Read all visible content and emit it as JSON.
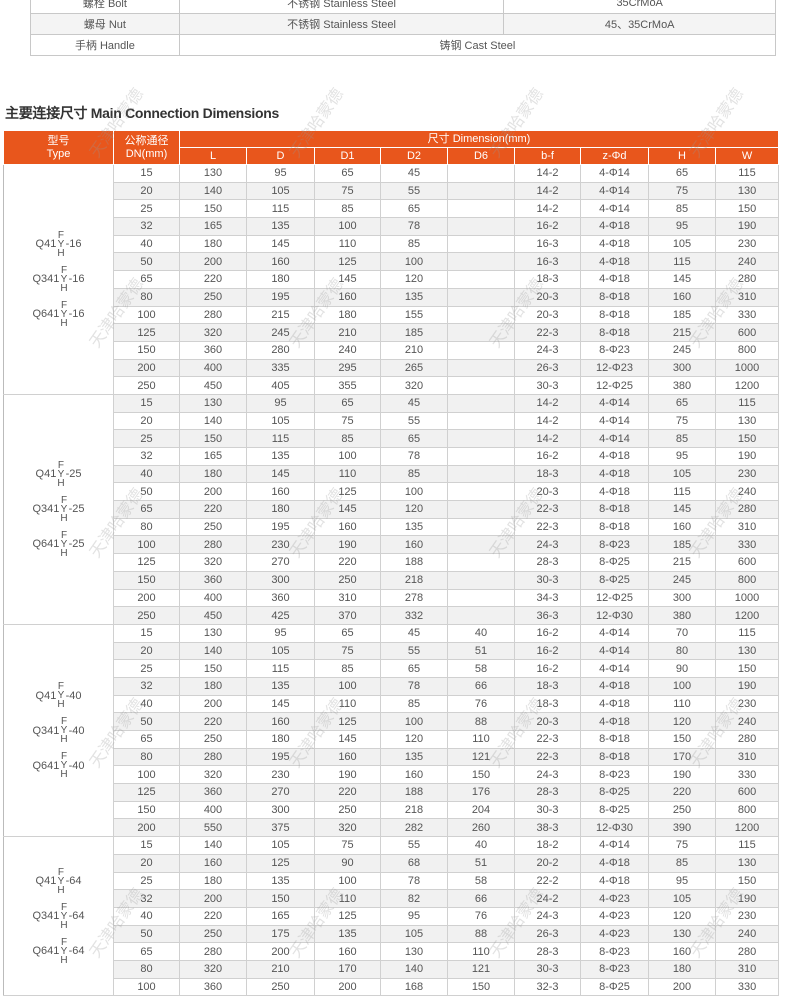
{
  "materials": [
    {
      "part": "螺栓 Bolt",
      "col1": "不锈钢 Stainless Steel",
      "col2": "35CrMoA"
    },
    {
      "part": "螺母 Nut",
      "col1": "不锈钢 Stainless Steel",
      "col2": "45、35CrMoA"
    },
    {
      "part": "手柄 Handle",
      "merged": "铸钢 Cast Steel"
    }
  ],
  "section_title": "主要连接尺寸 Main Connection Dimensions",
  "header": {
    "type": "型号\nType",
    "type_line1": "型号",
    "type_line2": "Type",
    "dn_line1": "公称通径",
    "dn_line2": "DN(mm)",
    "dimension": "尺寸 Dimension(mm)",
    "columns": [
      "L",
      "D",
      "D1",
      "D2",
      "D6",
      "b-f",
      "z-Φd",
      "H",
      "W"
    ]
  },
  "accent_color": "#e8561c",
  "watermark": "天津哈蒙德",
  "groups": [
    {
      "models": [
        "Q41",
        "Q341",
        "Q641"
      ],
      "sup": "F",
      "mid": "Y",
      "sub": "H",
      "pressure": "-16",
      "rows": [
        [
          "15",
          "130",
          "95",
          "65",
          "45",
          "",
          "14-2",
          "4-Φ14",
          "65",
          "115"
        ],
        [
          "20",
          "140",
          "105",
          "75",
          "55",
          "",
          "14-2",
          "4-Φ14",
          "75",
          "130"
        ],
        [
          "25",
          "150",
          "115",
          "85",
          "65",
          "",
          "14-2",
          "4-Φ14",
          "85",
          "150"
        ],
        [
          "32",
          "165",
          "135",
          "100",
          "78",
          "",
          "16-2",
          "4-Φ18",
          "95",
          "190"
        ],
        [
          "40",
          "180",
          "145",
          "110",
          "85",
          "",
          "16-3",
          "4-Φ18",
          "105",
          "230"
        ],
        [
          "50",
          "200",
          "160",
          "125",
          "100",
          "",
          "16-3",
          "4-Φ18",
          "115",
          "240"
        ],
        [
          "65",
          "220",
          "180",
          "145",
          "120",
          "",
          "18-3",
          "4-Φ18",
          "145",
          "280"
        ],
        [
          "80",
          "250",
          "195",
          "160",
          "135",
          "",
          "20-3",
          "8-Φ18",
          "160",
          "310"
        ],
        [
          "100",
          "280",
          "215",
          "180",
          "155",
          "",
          "20-3",
          "8-Φ18",
          "185",
          "330"
        ],
        [
          "125",
          "320",
          "245",
          "210",
          "185",
          "",
          "22-3",
          "8-Φ18",
          "215",
          "600"
        ],
        [
          "150",
          "360",
          "280",
          "240",
          "210",
          "",
          "24-3",
          "8-Φ23",
          "245",
          "800"
        ],
        [
          "200",
          "400",
          "335",
          "295",
          "265",
          "",
          "26-3",
          "12-Φ23",
          "300",
          "1000"
        ],
        [
          "250",
          "450",
          "405",
          "355",
          "320",
          "",
          "30-3",
          "12-Φ25",
          "380",
          "1200"
        ]
      ]
    },
    {
      "models": [
        "Q41",
        "Q341",
        "Q641"
      ],
      "sup": "F",
      "mid": "Y",
      "sub": "H",
      "pressure": "-25",
      "rows": [
        [
          "15",
          "130",
          "95",
          "65",
          "45",
          "",
          "14-2",
          "4-Φ14",
          "65",
          "115"
        ],
        [
          "20",
          "140",
          "105",
          "75",
          "55",
          "",
          "14-2",
          "4-Φ14",
          "75",
          "130"
        ],
        [
          "25",
          "150",
          "115",
          "85",
          "65",
          "",
          "14-2",
          "4-Φ14",
          "85",
          "150"
        ],
        [
          "32",
          "165",
          "135",
          "100",
          "78",
          "",
          "16-2",
          "4-Φ18",
          "95",
          "190"
        ],
        [
          "40",
          "180",
          "145",
          "110",
          "85",
          "",
          "18-3",
          "4-Φ18",
          "105",
          "230"
        ],
        [
          "50",
          "200",
          "160",
          "125",
          "100",
          "",
          "20-3",
          "4-Φ18",
          "115",
          "240"
        ],
        [
          "65",
          "220",
          "180",
          "145",
          "120",
          "",
          "22-3",
          "8-Φ18",
          "145",
          "280"
        ],
        [
          "80",
          "250",
          "195",
          "160",
          "135",
          "",
          "22-3",
          "8-Φ18",
          "160",
          "310"
        ],
        [
          "100",
          "280",
          "230",
          "190",
          "160",
          "",
          "24-3",
          "8-Φ23",
          "185",
          "330"
        ],
        [
          "125",
          "320",
          "270",
          "220",
          "188",
          "",
          "28-3",
          "8-Φ25",
          "215",
          "600"
        ],
        [
          "150",
          "360",
          "300",
          "250",
          "218",
          "",
          "30-3",
          "8-Φ25",
          "245",
          "800"
        ],
        [
          "200",
          "400",
          "360",
          "310",
          "278",
          "",
          "34-3",
          "12-Φ25",
          "300",
          "1000"
        ],
        [
          "250",
          "450",
          "425",
          "370",
          "332",
          "",
          "36-3",
          "12-Φ30",
          "380",
          "1200"
        ]
      ]
    },
    {
      "models": [
        "Q41",
        "Q341",
        "Q641"
      ],
      "sup": "F",
      "mid": "Y",
      "sub": "H",
      "pressure": "-40",
      "rows": [
        [
          "15",
          "130",
          "95",
          "65",
          "45",
          "40",
          "16-2",
          "4-Φ14",
          "70",
          "115"
        ],
        [
          "20",
          "140",
          "105",
          "75",
          "55",
          "51",
          "16-2",
          "4-Φ14",
          "80",
          "130"
        ],
        [
          "25",
          "150",
          "115",
          "85",
          "65",
          "58",
          "16-2",
          "4-Φ14",
          "90",
          "150"
        ],
        [
          "32",
          "180",
          "135",
          "100",
          "78",
          "66",
          "18-3",
          "4-Φ18",
          "100",
          "190"
        ],
        [
          "40",
          "200",
          "145",
          "110",
          "85",
          "76",
          "18-3",
          "4-Φ18",
          "110",
          "230"
        ],
        [
          "50",
          "220",
          "160",
          "125",
          "100",
          "88",
          "20-3",
          "4-Φ18",
          "120",
          "240"
        ],
        [
          "65",
          "250",
          "180",
          "145",
          "120",
          "110",
          "22-3",
          "8-Φ18",
          "150",
          "280"
        ],
        [
          "80",
          "280",
          "195",
          "160",
          "135",
          "121",
          "22-3",
          "8-Φ18",
          "170",
          "310"
        ],
        [
          "100",
          "320",
          "230",
          "190",
          "160",
          "150",
          "24-3",
          "8-Φ23",
          "190",
          "330"
        ],
        [
          "125",
          "360",
          "270",
          "220",
          "188",
          "176",
          "28-3",
          "8-Φ25",
          "220",
          "600"
        ],
        [
          "150",
          "400",
          "300",
          "250",
          "218",
          "204",
          "30-3",
          "8-Φ25",
          "250",
          "800"
        ],
        [
          "200",
          "550",
          "375",
          "320",
          "282",
          "260",
          "38-3",
          "12-Φ30",
          "390",
          "1200"
        ]
      ]
    },
    {
      "models": [
        "Q41",
        "Q341",
        "Q641"
      ],
      "sup": "F",
      "mid": "Y",
      "sub": "H",
      "pressure": "-64",
      "rows": [
        [
          "15",
          "140",
          "105",
          "75",
          "55",
          "40",
          "18-2",
          "4-Φ14",
          "75",
          "115"
        ],
        [
          "20",
          "160",
          "125",
          "90",
          "68",
          "51",
          "20-2",
          "4-Φ18",
          "85",
          "130"
        ],
        [
          "25",
          "180",
          "135",
          "100",
          "78",
          "58",
          "22-2",
          "4-Φ18",
          "95",
          "150"
        ],
        [
          "32",
          "200",
          "150",
          "110",
          "82",
          "66",
          "24-2",
          "4-Φ23",
          "105",
          "190"
        ],
        [
          "40",
          "220",
          "165",
          "125",
          "95",
          "76",
          "24-3",
          "4-Φ23",
          "120",
          "230"
        ],
        [
          "50",
          "250",
          "175",
          "135",
          "105",
          "88",
          "26-3",
          "4-Φ23",
          "130",
          "240"
        ],
        [
          "65",
          "280",
          "200",
          "160",
          "130",
          "110",
          "28-3",
          "8-Φ23",
          "160",
          "280"
        ],
        [
          "80",
          "320",
          "210",
          "170",
          "140",
          "121",
          "30-3",
          "8-Φ23",
          "180",
          "310"
        ],
        [
          "100",
          "360",
          "250",
          "200",
          "168",
          "150",
          "32-3",
          "8-Φ25",
          "200",
          "330"
        ]
      ]
    }
  ]
}
